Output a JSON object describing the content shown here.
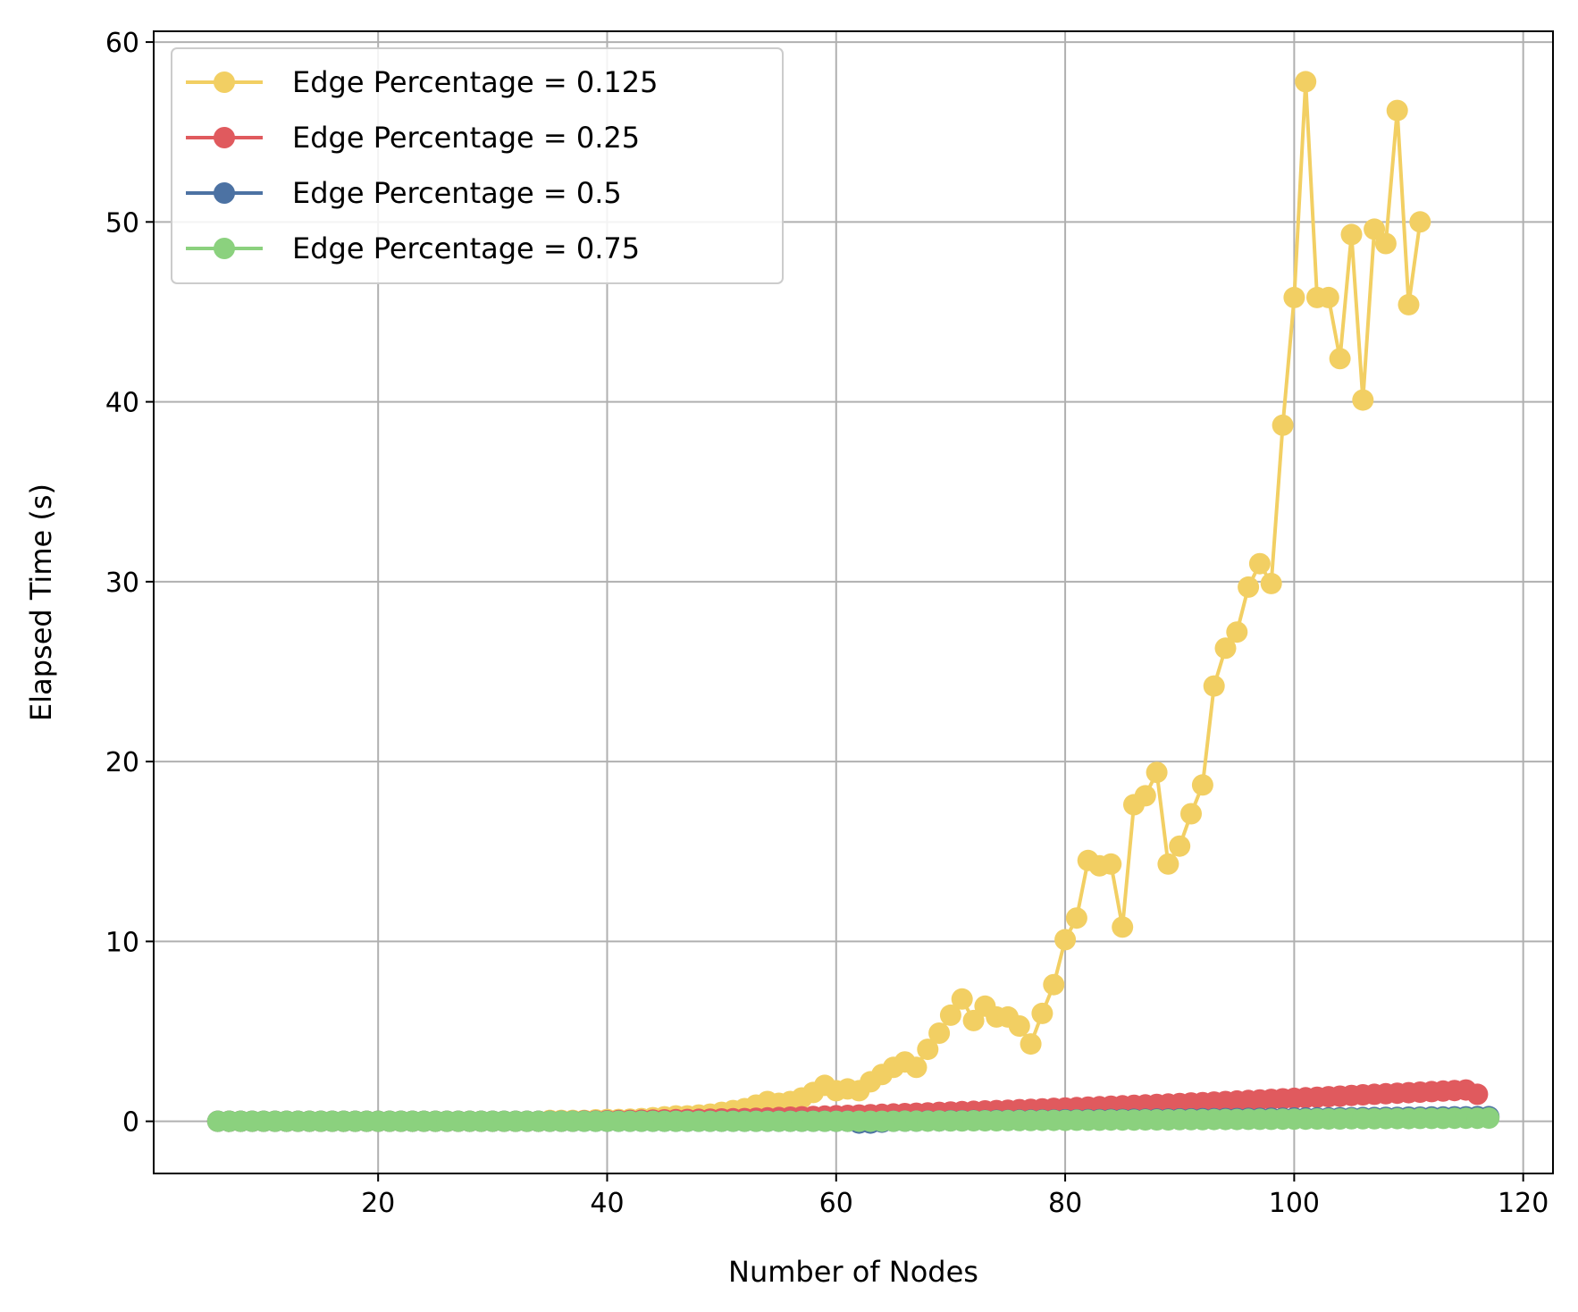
{
  "chart_data": {
    "type": "line",
    "title": "",
    "xlabel": "Number of Nodes",
    "ylabel": "Elapsed Time (s)",
    "xlim": [
      0.4,
      122.6
    ],
    "ylim": [
      -2.9,
      60.6
    ],
    "xticks": [
      20,
      40,
      60,
      80,
      100,
      120
    ],
    "yticks": [
      0,
      10,
      20,
      30,
      40,
      50,
      60
    ],
    "grid": true,
    "legend_position": "top-left",
    "x_start": 6,
    "series": [
      {
        "name": "Edge Percentage = 0.125",
        "color": "#f2cf63",
        "values": [
          0,
          0,
          0,
          0,
          0,
          0,
          0,
          0,
          0,
          0,
          0,
          0,
          0,
          0,
          0,
          0,
          0,
          0,
          0,
          0,
          0,
          0,
          0,
          0,
          0,
          0,
          0,
          0,
          0,
          0.05,
          0.05,
          0.05,
          0.05,
          0.08,
          0.1,
          0.1,
          0.12,
          0.15,
          0.2,
          0.25,
          0.3,
          0.3,
          0.35,
          0.4,
          0.5,
          0.6,
          0.7,
          0.9,
          1.1,
          1.0,
          1.1,
          1.3,
          1.6,
          2.0,
          1.7,
          1.8,
          1.7,
          2.2,
          2.6,
          3.0,
          3.3,
          3.0,
          4.0,
          4.9,
          5.9,
          6.8,
          5.6,
          6.4,
          5.8,
          5.8,
          5.3,
          4.3,
          6.0,
          7.6,
          10.1,
          11.3,
          14.5,
          14.2,
          14.3,
          10.8,
          17.6,
          18.1,
          19.4,
          14.3,
          15.3,
          17.1,
          18.7,
          24.2,
          26.3,
          27.2,
          29.7,
          31.0,
          29.9,
          38.7,
          45.8,
          57.8,
          45.8,
          45.8,
          42.4,
          49.3,
          40.1,
          49.6,
          48.8,
          56.2,
          45.4,
          50.0
        ]
      },
      {
        "name": "Edge Percentage = 0.25",
        "color": "#e05a5e",
        "values": [
          0,
          0,
          0,
          0,
          0,
          0,
          0,
          0,
          0,
          0,
          0,
          0,
          0,
          0,
          0,
          0,
          0,
          0,
          0,
          0,
          0,
          0,
          0,
          0,
          0,
          0,
          0,
          0,
          0,
          0,
          0,
          0,
          0.02,
          0.02,
          0.03,
          0.04,
          0.05,
          0.06,
          0.07,
          0.08,
          0.09,
          0.1,
          0.11,
          0.12,
          0.13,
          0.14,
          0.15,
          0.17,
          0.19,
          0.21,
          0.23,
          0.25,
          0.27,
          0.29,
          0.31,
          0.33,
          0.35,
          0.37,
          0.39,
          0.41,
          0.43,
          0.45,
          0.47,
          0.5,
          0.52,
          0.54,
          0.56,
          0.58,
          0.6,
          0.62,
          0.65,
          0.67,
          0.69,
          0.72,
          0.74,
          0.76,
          0.79,
          0.81,
          0.84,
          0.86,
          0.89,
          0.91,
          0.94,
          0.96,
          0.99,
          1.02,
          1.04,
          1.07,
          1.1,
          1.13,
          1.16,
          1.19,
          1.22,
          1.25,
          1.28,
          1.31,
          1.34,
          1.37,
          1.4,
          1.44,
          1.47,
          1.5,
          1.53,
          1.56,
          1.59,
          1.62,
          1.65,
          1.68,
          1.71,
          1.74,
          1.5
        ]
      },
      {
        "name": "Edge Percentage = 0.5",
        "color": "#4c72a3",
        "values": [
          0,
          0,
          0,
          0,
          0,
          0,
          0,
          0,
          0,
          0,
          0,
          0,
          0,
          0,
          0,
          0,
          0,
          0,
          0,
          0,
          0,
          0,
          0,
          0,
          0,
          0,
          0,
          0,
          0,
          0,
          0,
          0,
          0,
          0,
          0,
          0,
          0,
          0,
          0,
          0,
          0,
          0,
          0,
          0,
          0,
          0,
          0,
          0,
          0,
          0,
          0,
          0,
          0,
          0,
          0,
          0,
          -0.1,
          -0.1,
          -0.05,
          0,
          0.01,
          0.01,
          0.02,
          0.02,
          0.03,
          0.03,
          0.04,
          0.04,
          0.05,
          0.05,
          0.06,
          0.06,
          0.07,
          0.07,
          0.08,
          0.08,
          0.09,
          0.09,
          0.1,
          0.1,
          0.11,
          0.11,
          0.12,
          0.12,
          0.13,
          0.13,
          0.14,
          0.14,
          0.15,
          0.15,
          0.16,
          0.16,
          0.17,
          0.17,
          0.18,
          0.18,
          0.19,
          0.19,
          0.2,
          0.2,
          0.21,
          0.21,
          0.22,
          0.22,
          0.23,
          0.23,
          0.24,
          0.24,
          0.25,
          0.25,
          0.26,
          0.26
        ]
      },
      {
        "name": "Edge Percentage = 0.75",
        "color": "#8bd17e",
        "values": [
          0,
          0,
          0,
          0,
          0,
          0,
          0,
          0,
          0,
          0,
          0,
          0,
          0,
          0,
          0,
          0,
          0,
          0,
          0,
          0,
          0,
          0,
          0,
          0,
          0,
          0,
          0,
          0,
          0,
          0,
          0,
          0,
          0,
          0,
          0,
          0,
          0,
          0,
          0,
          0,
          0,
          0,
          0,
          0,
          0,
          0,
          0,
          0,
          0,
          0,
          0,
          0,
          0,
          0,
          0,
          0,
          0,
          0,
          0,
          0,
          0.01,
          0.01,
          0.01,
          0.02,
          0.02,
          0.02,
          0.03,
          0.03,
          0.03,
          0.04,
          0.04,
          0.04,
          0.05,
          0.05,
          0.05,
          0.06,
          0.06,
          0.06,
          0.07,
          0.07,
          0.07,
          0.08,
          0.08,
          0.08,
          0.09,
          0.09,
          0.09,
          0.1,
          0.1,
          0.1,
          0.11,
          0.11,
          0.11,
          0.12,
          0.12,
          0.12,
          0.13,
          0.13,
          0.13,
          0.14,
          0.14,
          0.14,
          0.15,
          0.15,
          0.15,
          0.16,
          0.16,
          0.16,
          0.17,
          0.17,
          0.17,
          0.18
        ]
      }
    ]
  }
}
